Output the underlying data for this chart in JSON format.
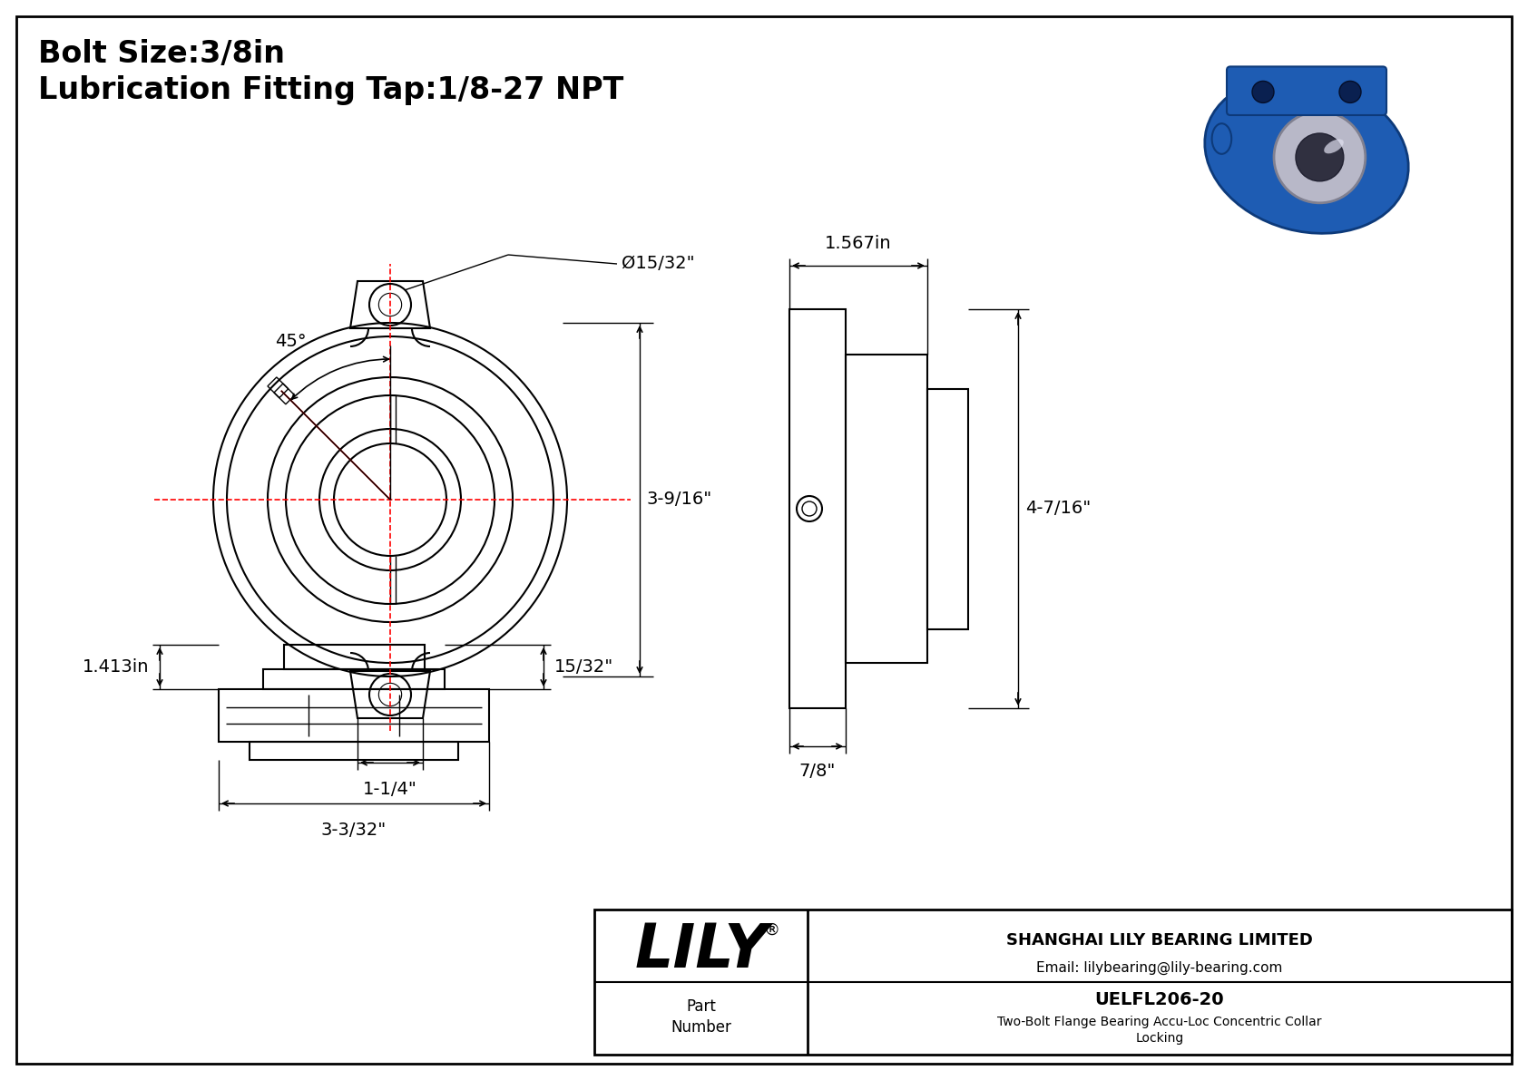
{
  "background_color": "#ffffff",
  "border_color": "#000000",
  "line_color": "#000000",
  "red_line_color": "#ff0000",
  "title_line1": "Bolt Size:3/8in",
  "title_line2": "Lubrication Fitting Tap:1/8-27 NPT",
  "title_fontsize": 24,
  "dim_fontsize": 14,
  "company": "LILY",
  "company_reg": "®",
  "company_full": "SHANGHAI LILY BEARING LIMITED",
  "company_email": "Email: lilybearing@lily-bearing.com",
  "part_label": "Part\nNumber",
  "part_number": "UELFL206-20",
  "part_desc": "Two-Bolt Flange Bearing Accu-Loc Concentric Collar\nLocking",
  "dim_45deg": "45°",
  "dim_bolt_hole": "Ø15/32\"",
  "dim_height": "3-9/16\"",
  "dim_width": "1-1/4\"",
  "dim_side_width": "1.567in",
  "dim_side_height": "4-7/16\"",
  "dim_side_depth": "7/8\"",
  "dim_front_height": "1.413in",
  "dim_front_width": "3-3/32\"",
  "dim_front_right": "15/32\""
}
